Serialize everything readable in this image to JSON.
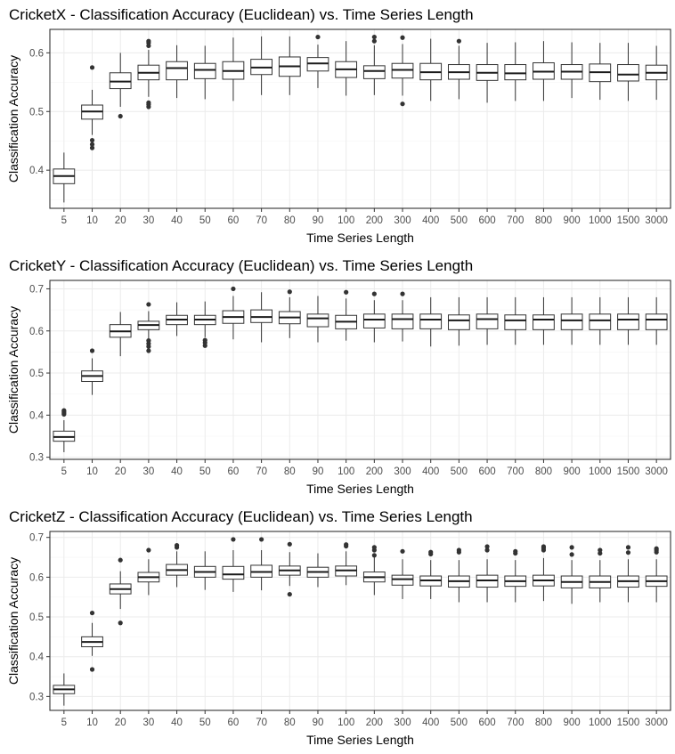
{
  "chart_data": [
    {
      "type": "boxplot",
      "title": "CricketX - Classification Accuracy (Euclidean) vs. Time Series Length",
      "xlabel": "Time Series Length",
      "ylabel": "Classification Accuracy",
      "ylim": [
        0.335,
        0.64
      ],
      "yticks": [
        0.4,
        0.5,
        0.6
      ],
      "ytick_labels": [
        "0.4",
        "0.5",
        "0.6"
      ],
      "grid": true,
      "categories": [
        "5",
        "10",
        "20",
        "30",
        "40",
        "50",
        "60",
        "70",
        "80",
        "90",
        "100",
        "200",
        "300",
        "400",
        "500",
        "600",
        "700",
        "800",
        "900",
        "1000",
        "1500",
        "3000"
      ],
      "boxes": [
        {
          "min": 0.345,
          "q1": 0.377,
          "median": 0.39,
          "q3": 0.402,
          "max": 0.43,
          "outliers": []
        },
        {
          "min": 0.46,
          "q1": 0.487,
          "median": 0.5,
          "q3": 0.511,
          "max": 0.537,
          "outliers": [
            0.438,
            0.444,
            0.451,
            0.575
          ]
        },
        {
          "min": 0.508,
          "q1": 0.539,
          "median": 0.551,
          "q3": 0.566,
          "max": 0.6,
          "outliers": [
            0.492
          ]
        },
        {
          "min": 0.525,
          "q1": 0.554,
          "median": 0.566,
          "q3": 0.579,
          "max": 0.605,
          "outliers": [
            0.508,
            0.512,
            0.515,
            0.612,
            0.617,
            0.62
          ]
        },
        {
          "min": 0.523,
          "q1": 0.554,
          "median": 0.574,
          "q3": 0.585,
          "max": 0.613,
          "outliers": []
        },
        {
          "min": 0.521,
          "q1": 0.556,
          "median": 0.571,
          "q3": 0.582,
          "max": 0.612,
          "outliers": []
        },
        {
          "min": 0.518,
          "q1": 0.555,
          "median": 0.569,
          "q3": 0.585,
          "max": 0.626,
          "outliers": []
        },
        {
          "min": 0.528,
          "q1": 0.563,
          "median": 0.575,
          "q3": 0.589,
          "max": 0.628,
          "outliers": []
        },
        {
          "min": 0.528,
          "q1": 0.56,
          "median": 0.577,
          "q3": 0.593,
          "max": 0.628,
          "outliers": []
        },
        {
          "min": 0.54,
          "q1": 0.569,
          "median": 0.582,
          "q3": 0.592,
          "max": 0.614,
          "outliers": [
            0.627
          ]
        },
        {
          "min": 0.527,
          "q1": 0.558,
          "median": 0.572,
          "q3": 0.585,
          "max": 0.62,
          "outliers": []
        },
        {
          "min": 0.528,
          "q1": 0.556,
          "median": 0.569,
          "q3": 0.578,
          "max": 0.613,
          "outliers": [
            0.62,
            0.627
          ]
        },
        {
          "min": 0.527,
          "q1": 0.557,
          "median": 0.571,
          "q3": 0.582,
          "max": 0.615,
          "outliers": [
            0.513,
            0.626
          ]
        },
        {
          "min": 0.518,
          "q1": 0.554,
          "median": 0.567,
          "q3": 0.582,
          "max": 0.624,
          "outliers": []
        },
        {
          "min": 0.521,
          "q1": 0.555,
          "median": 0.567,
          "q3": 0.58,
          "max": 0.612,
          "outliers": [
            0.62
          ]
        },
        {
          "min": 0.515,
          "q1": 0.553,
          "median": 0.566,
          "q3": 0.58,
          "max": 0.617,
          "outliers": []
        },
        {
          "min": 0.518,
          "q1": 0.554,
          "median": 0.565,
          "q3": 0.58,
          "max": 0.618,
          "outliers": []
        },
        {
          "min": 0.518,
          "q1": 0.555,
          "median": 0.568,
          "q3": 0.583,
          "max": 0.62,
          "outliers": []
        },
        {
          "min": 0.523,
          "q1": 0.555,
          "median": 0.568,
          "q3": 0.58,
          "max": 0.618,
          "outliers": []
        },
        {
          "min": 0.52,
          "q1": 0.551,
          "median": 0.567,
          "q3": 0.581,
          "max": 0.617,
          "outliers": []
        },
        {
          "min": 0.518,
          "q1": 0.552,
          "median": 0.563,
          "q3": 0.58,
          "max": 0.617,
          "outliers": []
        },
        {
          "min": 0.52,
          "q1": 0.554,
          "median": 0.566,
          "q3": 0.579,
          "max": 0.612,
          "outliers": []
        }
      ]
    },
    {
      "type": "boxplot",
      "title": "CricketY - Classification Accuracy (Euclidean) vs. Time Series Length",
      "xlabel": "Time Series Length",
      "ylabel": "Classification Accuracy",
      "ylim": [
        0.295,
        0.72
      ],
      "yticks": [
        0.3,
        0.4,
        0.5,
        0.6,
        0.7
      ],
      "ytick_labels": [
        "0.3",
        "0.4",
        "0.5",
        "0.6",
        "0.7"
      ],
      "grid": true,
      "categories": [
        "5",
        "10",
        "20",
        "30",
        "40",
        "50",
        "60",
        "70",
        "80",
        "90",
        "100",
        "200",
        "300",
        "400",
        "500",
        "600",
        "700",
        "800",
        "900",
        "1000",
        "1500",
        "3000"
      ],
      "boxes": [
        {
          "min": 0.312,
          "q1": 0.338,
          "median": 0.348,
          "q3": 0.362,
          "max": 0.388,
          "outliers": [
            0.402,
            0.405,
            0.408,
            0.411
          ]
        },
        {
          "min": 0.448,
          "q1": 0.48,
          "median": 0.493,
          "q3": 0.505,
          "max": 0.535,
          "outliers": [
            0.553
          ]
        },
        {
          "min": 0.54,
          "q1": 0.585,
          "median": 0.599,
          "q3": 0.615,
          "max": 0.645,
          "outliers": []
        },
        {
          "min": 0.578,
          "q1": 0.603,
          "median": 0.614,
          "q3": 0.623,
          "max": 0.647,
          "outliers": [
            0.553,
            0.563,
            0.57,
            0.577,
            0.663
          ]
        },
        {
          "min": 0.588,
          "q1": 0.615,
          "median": 0.627,
          "q3": 0.637,
          "max": 0.668,
          "outliers": []
        },
        {
          "min": 0.585,
          "q1": 0.615,
          "median": 0.627,
          "q3": 0.637,
          "max": 0.67,
          "outliers": [
            0.565,
            0.572,
            0.578
          ]
        },
        {
          "min": 0.58,
          "q1": 0.618,
          "median": 0.633,
          "q3": 0.648,
          "max": 0.683,
          "outliers": [
            0.7
          ]
        },
        {
          "min": 0.573,
          "q1": 0.62,
          "median": 0.633,
          "q3": 0.65,
          "max": 0.692,
          "outliers": []
        },
        {
          "min": 0.583,
          "q1": 0.617,
          "median": 0.632,
          "q3": 0.646,
          "max": 0.68,
          "outliers": [
            0.693
          ]
        },
        {
          "min": 0.573,
          "q1": 0.61,
          "median": 0.63,
          "q3": 0.64,
          "max": 0.683,
          "outliers": []
        },
        {
          "min": 0.577,
          "q1": 0.605,
          "median": 0.622,
          "q3": 0.637,
          "max": 0.677,
          "outliers": [
            0.692
          ]
        },
        {
          "min": 0.573,
          "q1": 0.607,
          "median": 0.627,
          "q3": 0.64,
          "max": 0.673,
          "outliers": [
            0.688
          ]
        },
        {
          "min": 0.575,
          "q1": 0.605,
          "median": 0.628,
          "q3": 0.64,
          "max": 0.673,
          "outliers": [
            0.688
          ]
        },
        {
          "min": 0.563,
          "q1": 0.605,
          "median": 0.627,
          "q3": 0.64,
          "max": 0.68,
          "outliers": []
        },
        {
          "min": 0.565,
          "q1": 0.603,
          "median": 0.625,
          "q3": 0.638,
          "max": 0.68,
          "outliers": []
        },
        {
          "min": 0.567,
          "q1": 0.605,
          "median": 0.628,
          "q3": 0.64,
          "max": 0.68,
          "outliers": []
        },
        {
          "min": 0.567,
          "q1": 0.603,
          "median": 0.625,
          "q3": 0.638,
          "max": 0.68,
          "outliers": []
        },
        {
          "min": 0.567,
          "q1": 0.603,
          "median": 0.627,
          "q3": 0.638,
          "max": 0.68,
          "outliers": []
        },
        {
          "min": 0.567,
          "q1": 0.603,
          "median": 0.625,
          "q3": 0.64,
          "max": 0.68,
          "outliers": []
        },
        {
          "min": 0.567,
          "q1": 0.603,
          "median": 0.625,
          "q3": 0.64,
          "max": 0.68,
          "outliers": []
        },
        {
          "min": 0.567,
          "q1": 0.603,
          "median": 0.627,
          "q3": 0.64,
          "max": 0.68,
          "outliers": []
        },
        {
          "min": 0.567,
          "q1": 0.603,
          "median": 0.627,
          "q3": 0.64,
          "max": 0.68,
          "outliers": []
        }
      ]
    },
    {
      "type": "boxplot",
      "title": "CricketZ - Classification Accuracy (Euclidean) vs. Time Series Length",
      "xlabel": "Time Series Length",
      "ylabel": "Classification Accuracy",
      "ylim": [
        0.265,
        0.715
      ],
      "yticks": [
        0.3,
        0.4,
        0.5,
        0.6,
        0.7
      ],
      "ytick_labels": [
        "0.3",
        "0.4",
        "0.5",
        "0.6",
        "0.7"
      ],
      "grid": true,
      "categories": [
        "5",
        "10",
        "20",
        "30",
        "40",
        "50",
        "60",
        "70",
        "80",
        "90",
        "100",
        "200",
        "300",
        "400",
        "500",
        "600",
        "700",
        "800",
        "900",
        "1000",
        "1500",
        "3000"
      ],
      "boxes": [
        {
          "min": 0.277,
          "q1": 0.307,
          "median": 0.318,
          "q3": 0.328,
          "max": 0.358,
          "outliers": []
        },
        {
          "min": 0.402,
          "q1": 0.425,
          "median": 0.437,
          "q3": 0.45,
          "max": 0.485,
          "outliers": [
            0.368,
            0.51
          ]
        },
        {
          "min": 0.52,
          "q1": 0.558,
          "median": 0.57,
          "q3": 0.583,
          "max": 0.615,
          "outliers": [
            0.485,
            0.643
          ]
        },
        {
          "min": 0.555,
          "q1": 0.588,
          "median": 0.6,
          "q3": 0.612,
          "max": 0.645,
          "outliers": [
            0.668
          ]
        },
        {
          "min": 0.575,
          "q1": 0.605,
          "median": 0.618,
          "q3": 0.632,
          "max": 0.665,
          "outliers": [
            0.675,
            0.68
          ]
        },
        {
          "min": 0.568,
          "q1": 0.6,
          "median": 0.613,
          "q3": 0.627,
          "max": 0.665,
          "outliers": []
        },
        {
          "min": 0.563,
          "q1": 0.595,
          "median": 0.607,
          "q3": 0.627,
          "max": 0.668,
          "outliers": [
            0.695
          ]
        },
        {
          "min": 0.567,
          "q1": 0.6,
          "median": 0.613,
          "q3": 0.63,
          "max": 0.668,
          "outliers": [
            0.695
          ]
        },
        {
          "min": 0.578,
          "q1": 0.605,
          "median": 0.617,
          "q3": 0.628,
          "max": 0.663,
          "outliers": [
            0.557,
            0.683
          ]
        },
        {
          "min": 0.575,
          "q1": 0.6,
          "median": 0.613,
          "q3": 0.625,
          "max": 0.66,
          "outliers": []
        },
        {
          "min": 0.58,
          "q1": 0.603,
          "median": 0.617,
          "q3": 0.628,
          "max": 0.665,
          "outliers": [
            0.678,
            0.682
          ]
        },
        {
          "min": 0.555,
          "q1": 0.588,
          "median": 0.6,
          "q3": 0.613,
          "max": 0.65,
          "outliers": [
            0.655,
            0.668,
            0.675
          ]
        },
        {
          "min": 0.545,
          "q1": 0.58,
          "median": 0.595,
          "q3": 0.605,
          "max": 0.645,
          "outliers": [
            0.665
          ]
        },
        {
          "min": 0.545,
          "q1": 0.578,
          "median": 0.592,
          "q3": 0.603,
          "max": 0.643,
          "outliers": [
            0.658,
            0.663
          ]
        },
        {
          "min": 0.537,
          "q1": 0.575,
          "median": 0.59,
          "q3": 0.603,
          "max": 0.643,
          "outliers": [
            0.663,
            0.668
          ]
        },
        {
          "min": 0.537,
          "q1": 0.575,
          "median": 0.592,
          "q3": 0.605,
          "max": 0.645,
          "outliers": [
            0.668,
            0.677
          ]
        },
        {
          "min": 0.537,
          "q1": 0.577,
          "median": 0.59,
          "q3": 0.603,
          "max": 0.643,
          "outliers": [
            0.66,
            0.665
          ]
        },
        {
          "min": 0.54,
          "q1": 0.578,
          "median": 0.592,
          "q3": 0.605,
          "max": 0.648,
          "outliers": [
            0.668,
            0.673,
            0.677
          ]
        },
        {
          "min": 0.533,
          "q1": 0.573,
          "median": 0.588,
          "q3": 0.603,
          "max": 0.643,
          "outliers": [
            0.657,
            0.675
          ]
        },
        {
          "min": 0.537,
          "q1": 0.573,
          "median": 0.588,
          "q3": 0.603,
          "max": 0.643,
          "outliers": [
            0.66,
            0.668
          ]
        },
        {
          "min": 0.537,
          "q1": 0.575,
          "median": 0.59,
          "q3": 0.603,
          "max": 0.645,
          "outliers": [
            0.662,
            0.675
          ]
        },
        {
          "min": 0.537,
          "q1": 0.577,
          "median": 0.59,
          "q3": 0.603,
          "max": 0.645,
          "outliers": [
            0.663,
            0.668,
            0.672
          ]
        }
      ]
    }
  ]
}
